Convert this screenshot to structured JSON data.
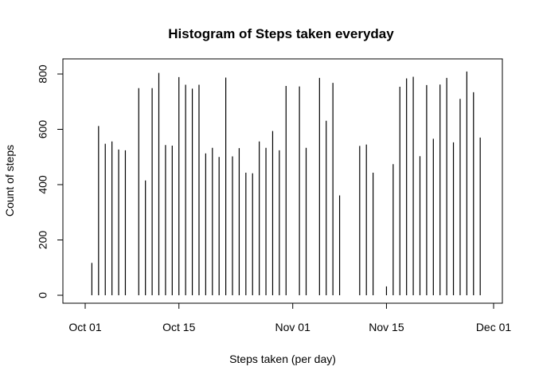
{
  "chart_data": {
    "type": "bar",
    "title": "Histogram of Steps taken everyday",
    "xlabel": "Steps taken (per day)",
    "ylabel": "Count of steps",
    "x_tick_labels": [
      "Oct 01",
      "Oct 15",
      "Nov 01",
      "Nov 15",
      "Dec 01"
    ],
    "x_tick_dates": [
      "2012-10-01",
      "2012-10-15",
      "2012-11-01",
      "2012-11-15",
      "2012-12-01"
    ],
    "xlim": [
      "2012-09-30",
      "2012-12-01"
    ],
    "y_ticks": [
      0,
      200,
      400,
      600,
      800
    ],
    "ylim": [
      0,
      820
    ],
    "grid": false,
    "legend": "none",
    "bar_color": "#000000",
    "x": [
      "2012-10-02",
      "2012-10-03",
      "2012-10-04",
      "2012-10-05",
      "2012-10-06",
      "2012-10-07",
      "2012-10-09",
      "2012-10-10",
      "2012-10-11",
      "2012-10-12",
      "2012-10-13",
      "2012-10-14",
      "2012-10-15",
      "2012-10-16",
      "2012-10-17",
      "2012-10-18",
      "2012-10-19",
      "2012-10-20",
      "2012-10-21",
      "2012-10-22",
      "2012-10-23",
      "2012-10-24",
      "2012-10-25",
      "2012-10-26",
      "2012-10-27",
      "2012-10-28",
      "2012-10-29",
      "2012-10-30",
      "2012-10-31",
      "2012-11-02",
      "2012-11-03",
      "2012-11-05",
      "2012-11-06",
      "2012-11-07",
      "2012-11-08",
      "2012-11-11",
      "2012-11-12",
      "2012-11-13",
      "2012-11-15",
      "2012-11-16",
      "2012-11-17",
      "2012-11-18",
      "2012-11-19",
      "2012-11-20",
      "2012-11-21",
      "2012-11-22",
      "2012-11-23",
      "2012-11-24",
      "2012-11-25",
      "2012-11-26",
      "2012-11-27",
      "2012-11-28",
      "2012-11-29"
    ],
    "values": [
      117,
      612,
      548,
      556,
      527,
      524,
      749,
      415,
      749,
      804,
      543,
      541,
      789,
      761,
      747,
      761,
      513,
      533,
      500,
      787,
      502,
      532,
      443,
      441,
      556,
      533,
      594,
      524,
      757,
      755,
      533,
      786,
      631,
      768,
      361,
      540,
      545,
      443,
      32,
      474,
      754,
      784,
      790,
      503,
      760,
      566,
      762,
      786,
      553,
      710,
      809,
      734,
      570
    ]
  }
}
